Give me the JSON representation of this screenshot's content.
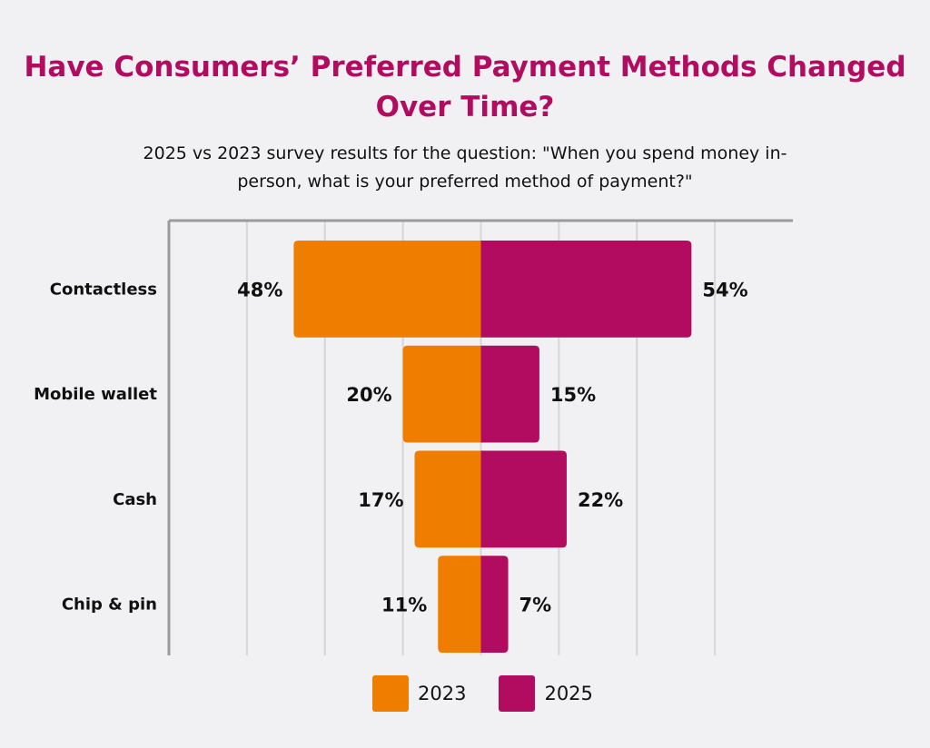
{
  "chart_data": {
    "type": "bar",
    "orientation": "horizontal-diverging",
    "title": "Have Consumers’ Preferred Payment Methods Changed Over Time?",
    "subtitle": "2025 vs 2023 survey results for the question: \"When you spend money in-person, what is your preferred method of payment?\"",
    "categories": [
      "Contactless",
      "Mobile wallet",
      "Cash",
      "Chip & pin"
    ],
    "series": [
      {
        "name": "2023",
        "values": [
          48,
          20,
          17,
          11
        ],
        "labels": [
          "48%",
          "20%",
          "17%",
          "11%"
        ],
        "color": "#ef7d00",
        "side": "left"
      },
      {
        "name": "2025",
        "values": [
          54,
          15,
          22,
          7
        ],
        "labels": [
          "54%",
          "15%",
          "22%",
          "7%"
        ],
        "color": "#b10c5f",
        "side": "right"
      }
    ],
    "xlim": [
      -80,
      80
    ],
    "grid": true,
    "legend_placement": "bottom"
  }
}
